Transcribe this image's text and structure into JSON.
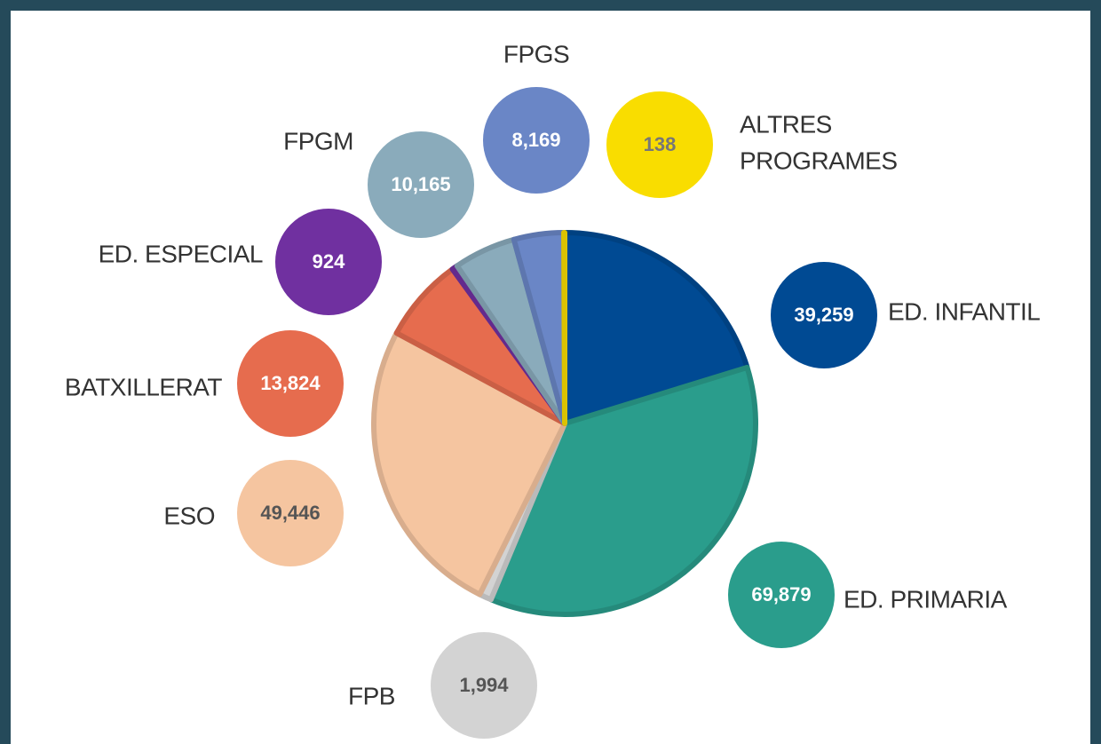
{
  "chart_data": {
    "type": "pie",
    "categories": [
      "ED. INFANTIL",
      "ED. PRIMARIA",
      "FPB",
      "ESO",
      "BATXILLERAT",
      "ED. ESPECIAL",
      "FPGM",
      "FPGS",
      "ALTRES PROGRAMES"
    ],
    "values": [
      39259,
      69879,
      1994,
      49446,
      13824,
      924,
      10165,
      8169,
      138
    ],
    "value_labels": [
      "39,259",
      "69,879",
      "1,994",
      "49,446",
      "13,824",
      "924",
      "10,165",
      "8,169",
      "138"
    ],
    "colors": [
      "#004a93",
      "#2a9d8c",
      "#d3d3d3",
      "#f5c5a0",
      "#e66c4e",
      "#7030a0",
      "#8aabbb",
      "#6a86c6",
      "#f9dd00"
    ]
  }
}
